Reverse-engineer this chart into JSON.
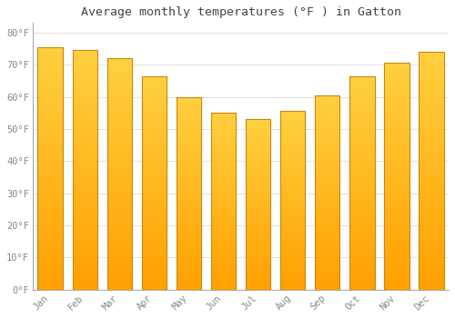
{
  "title": "Average monthly temperatures (°F ) in Gatton",
  "months": [
    "Jan",
    "Feb",
    "Mar",
    "Apr",
    "May",
    "Jun",
    "Jul",
    "Aug",
    "Sep",
    "Oct",
    "Nov",
    "Dec"
  ],
  "values": [
    75.5,
    74.5,
    72,
    66.5,
    60,
    55,
    53,
    55.5,
    60.5,
    66.5,
    70.5,
    74
  ],
  "bar_color_top": "#FFD040",
  "bar_color_bottom": "#FFA000",
  "bar_edge_color": "#C8880A",
  "background_color": "#FFFFFF",
  "grid_color": "#E0E0E0",
  "yticks": [
    0,
    10,
    20,
    30,
    40,
    50,
    60,
    70,
    80
  ],
  "ylim": [
    0,
    83
  ],
  "tick_label_color": "#888888",
  "title_color": "#444444",
  "font_family": "monospace",
  "bar_width": 0.72
}
